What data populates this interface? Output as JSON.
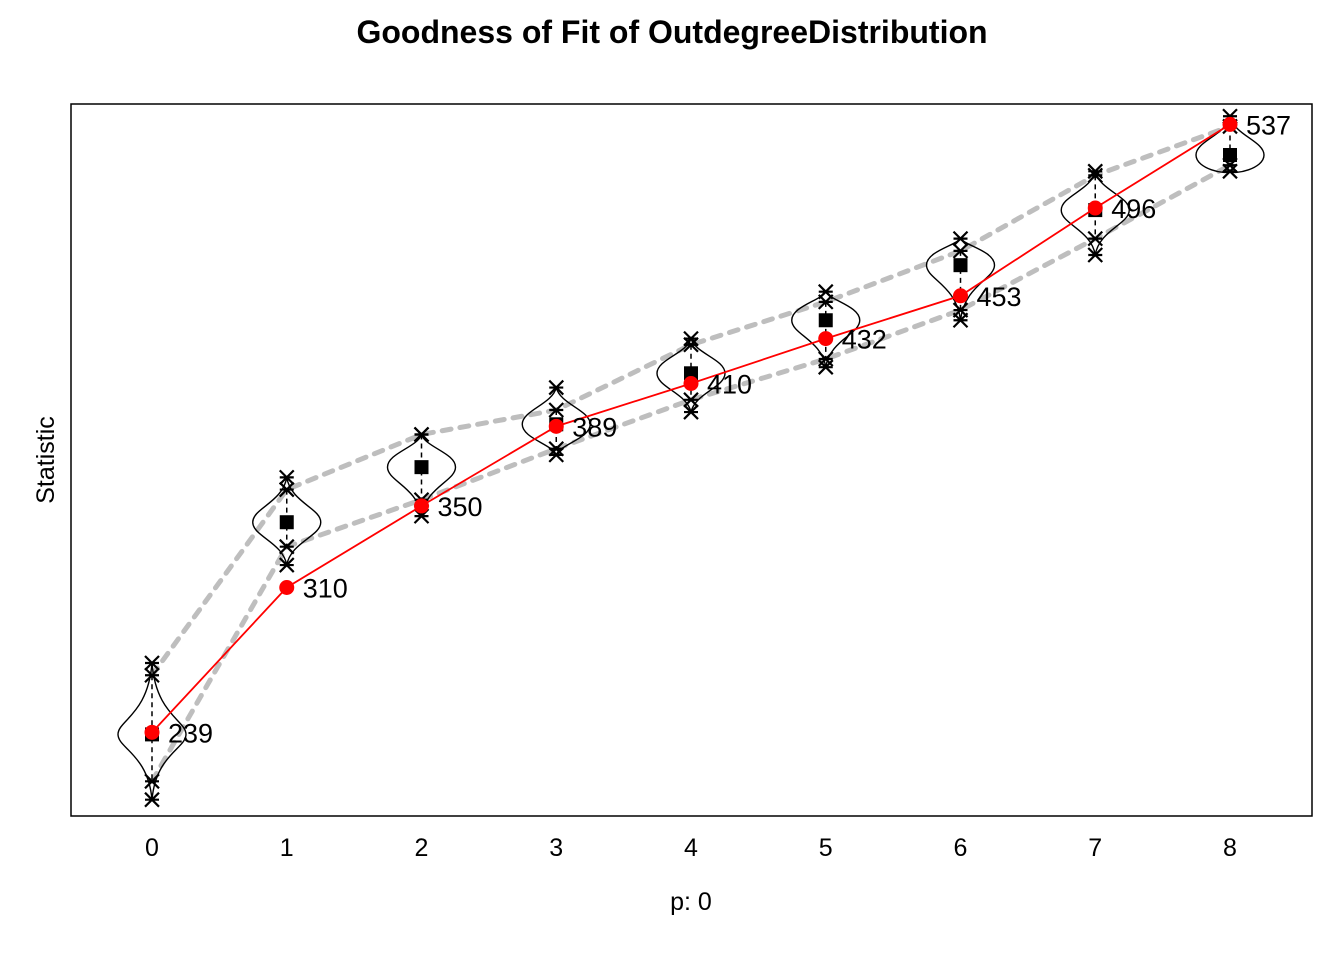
{
  "chart_data": {
    "type": "line",
    "title": "Goodness of Fit of OutdegreeDistribution",
    "xlabel": "p: 0",
    "ylabel": "Statistic",
    "categories": [
      "0",
      "1",
      "2",
      "3",
      "4",
      "5",
      "6",
      "7",
      "8"
    ],
    "observed": {
      "values": [
        239,
        310,
        350,
        389,
        410,
        432,
        453,
        496,
        537
      ],
      "labels": [
        "239",
        "310",
        "350",
        "389",
        "410",
        "432",
        "453",
        "496",
        "537"
      ],
      "color": "#ff0000"
    },
    "simulated": {
      "median": [
        238,
        342,
        369,
        390,
        415,
        441,
        468,
        495,
        522
      ],
      "upper_band": [
        267,
        358,
        385,
        397,
        429,
        450,
        475,
        512,
        536
      ],
      "lower_band": [
        215,
        330,
        353,
        378,
        402,
        422,
        446,
        481,
        517
      ],
      "max": [
        273,
        364,
        385,
        408,
        432,
        455,
        481,
        514,
        541
      ],
      "min": [
        206,
        321,
        345,
        375,
        396,
        418,
        441,
        473,
        514
      ],
      "color": "#000000"
    },
    "band_color": "#bebebe",
    "ylim": [
      198,
      547
    ],
    "grid": false,
    "legend": "none"
  }
}
